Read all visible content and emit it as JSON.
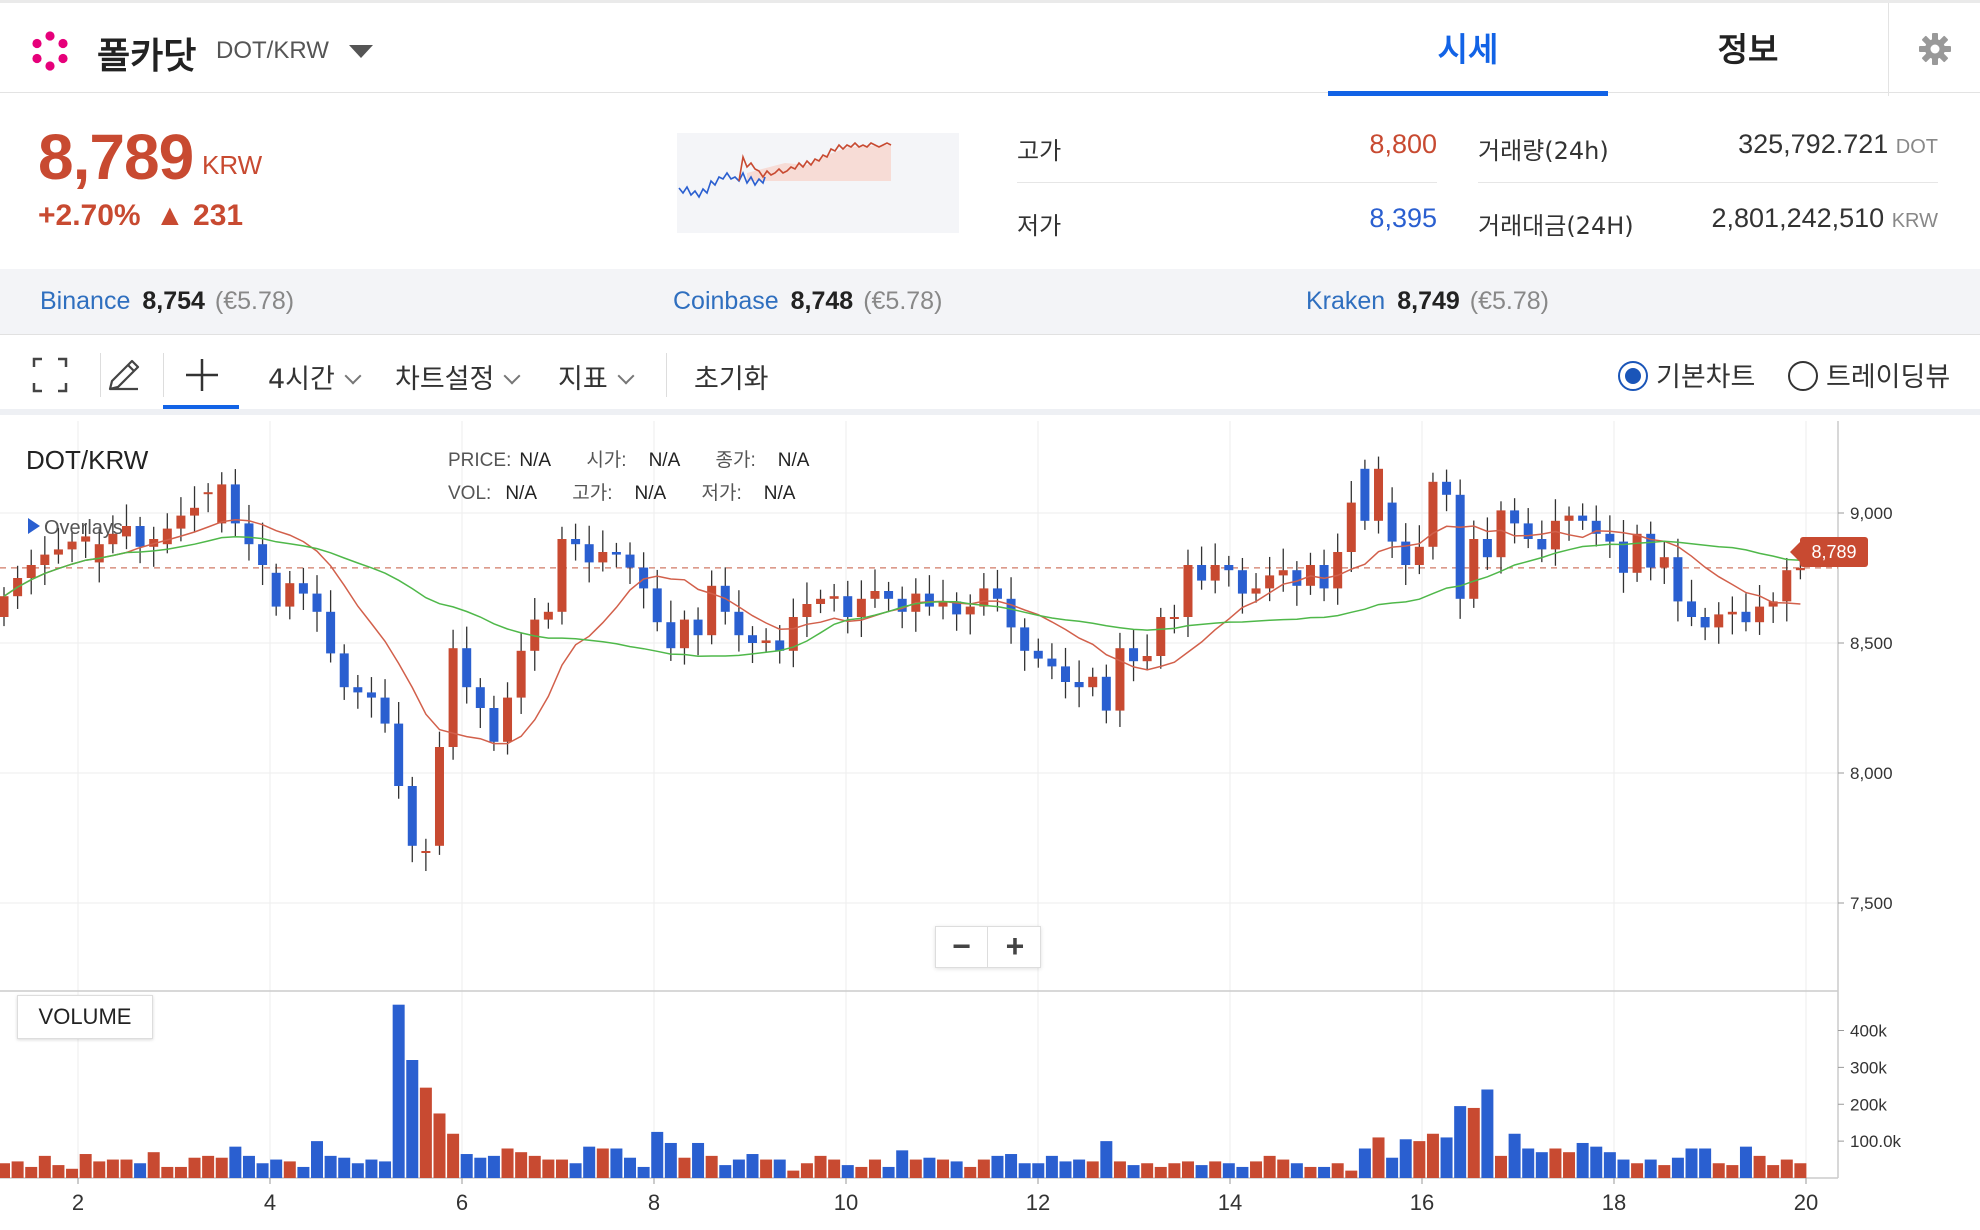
{
  "header": {
    "coin_name": "폴카닷",
    "pair": "DOT/KRW",
    "tabs": [
      {
        "label": "시세"
      },
      {
        "label": "정보"
      }
    ]
  },
  "summary": {
    "price": "8,789",
    "unit": "KRW",
    "change_pct": "+2.70%",
    "change_abs": "▲ 231",
    "high_label": "고가",
    "high": "8,800",
    "low_label": "저가",
    "low": "8,395",
    "volume_label": "거래량(24h)",
    "volume": "325,792.721",
    "volume_unit": "DOT",
    "amount_label": "거래대금(24H)",
    "amount": "2,801,242,510",
    "amount_unit": "KRW"
  },
  "exchanges": [
    {
      "name": "Binance",
      "price": "8,754",
      "eur": "(€5.78)"
    },
    {
      "name": "Coinbase",
      "price": "8,748",
      "eur": "(€5.78)"
    },
    {
      "name": "Kraken",
      "price": "8,749",
      "eur": "(€5.78)"
    }
  ],
  "toolbar": {
    "interval": "4시간",
    "chart_settings": "차트설정",
    "indicators": "지표",
    "reset": "초기화",
    "radio_basic": "기본차트",
    "radio_tv": "트레이딩뷰"
  },
  "chart": {
    "pair_label": "DOT/KRW",
    "overlays": "Overlays",
    "legend": {
      "price_k": "PRICE:",
      "price_v": "N/A",
      "open_k": "시가:",
      "open_v": "N/A",
      "close_k": "종가:",
      "close_v": "N/A",
      "vol_k": "VOL:",
      "vol_v": "N/A",
      "high_k": "고가:",
      "high_v": "N/A",
      "low_k": "저가:",
      "low_v": "N/A"
    },
    "current_price_tag": "8,789",
    "volume_label": "VOLUME",
    "zoom_minus": "−",
    "zoom_plus": "+"
  },
  "colors": {
    "up": "#c84a31",
    "down": "#2a5fd0",
    "accent": "#1263e6"
  },
  "chart_data": {
    "type": "candlestick",
    "ylim": [
      7200,
      9300
    ],
    "y_ticks": [
      "9,000",
      "8,500",
      "8,000",
      "7,500"
    ],
    "x_ticks": [
      "2",
      "4",
      "6",
      "8",
      "10",
      "12",
      "14",
      "16",
      "18",
      "20"
    ],
    "vol_ticks": [
      "400k",
      "300k",
      "200k",
      "100.0k"
    ],
    "close": [
      8680,
      8750,
      8800,
      8840,
      8860,
      8890,
      8910,
      8880,
      8920,
      8950,
      8870,
      8900,
      8940,
      8990,
      9020,
      9080,
      9110,
      8960,
      8880,
      8800,
      8640,
      8730,
      8690,
      8620,
      8460,
      8330,
      8310,
      8290,
      8190,
      7950,
      7720,
      7700,
      8100,
      8480,
      8330,
      8250,
      8120,
      8290,
      8470,
      8590,
      8620,
      8900,
      8880,
      8810,
      8850,
      8840,
      8790,
      8710,
      8580,
      8480,
      8590,
      8530,
      8720,
      8620,
      8530,
      8500,
      8510,
      8470,
      8600,
      8650,
      8670,
      8680,
      8600,
      8670,
      8700,
      8670,
      8620,
      8690,
      8640,
      8660,
      8610,
      8640,
      8710,
      8670,
      8560,
      8470,
      8440,
      8410,
      8350,
      8330,
      8370,
      8240,
      8480,
      8430,
      8450,
      8600,
      8600,
      8800,
      8740,
      8800,
      8780,
      8690,
      8710,
      8760,
      8780,
      8720,
      8800,
      8710,
      8850,
      9040,
      8970,
      9170,
      8890,
      8800,
      8870,
      9120,
      9070,
      8670,
      8900,
      8830,
      9010,
      8960,
      8900,
      8860,
      8970,
      8990,
      8970,
      8920,
      8890,
      8770,
      8920,
      8790,
      8830,
      8660,
      8600,
      8560,
      8610,
      8620,
      8580,
      8640,
      8660,
      8780,
      8789
    ],
    "open": [
      8600,
      8680,
      8750,
      8800,
      8840,
      8860,
      8890,
      8810,
      8880,
      8910,
      8950,
      8870,
      8880,
      8940,
      8990,
      9080,
      8960,
      9110,
      8960,
      8880,
      8770,
      8640,
      8730,
      8690,
      8620,
      8460,
      8330,
      8310,
      8290,
      8190,
      7950,
      7700,
      7720,
      8100,
      8480,
      8330,
      8250,
      8120,
      8290,
      8470,
      8590,
      8620,
      8900,
      8880,
      8810,
      8850,
      8840,
      8790,
      8710,
      8580,
      8480,
      8590,
      8530,
      8720,
      8620,
      8530,
      8500,
      8510,
      8470,
      8600,
      8650,
      8670,
      8680,
      8600,
      8670,
      8700,
      8670,
      8620,
      8690,
      8640,
      8660,
      8610,
      8640,
      8710,
      8670,
      8560,
      8470,
      8440,
      8410,
      8350,
      8330,
      8370,
      8240,
      8480,
      8430,
      8450,
      8600,
      8600,
      8800,
      8740,
      8800,
      8780,
      8690,
      8710,
      8760,
      8780,
      8720,
      8800,
      8710,
      8850,
      9170,
      8970,
      9040,
      8890,
      8800,
      8870,
      9120,
      9070,
      8670,
      8900,
      8830,
      9010,
      8960,
      8900,
      8860,
      8970,
      8990,
      8970,
      8920,
      8890,
      8770,
      8920,
      8790,
      8830,
      8660,
      8600,
      8560,
      8610,
      8620,
      8580,
      8640,
      8660,
      8780
    ],
    "volume": [
      40,
      45,
      30,
      60,
      35,
      25,
      65,
      45,
      50,
      50,
      40,
      70,
      30,
      30,
      55,
      60,
      55,
      85,
      60,
      40,
      50,
      45,
      30,
      100,
      60,
      55,
      40,
      50,
      45,
      470,
      320,
      245,
      175,
      120,
      65,
      55,
      60,
      80,
      70,
      60,
      50,
      50,
      40,
      85,
      80,
      80,
      55,
      30,
      125,
      95,
      55,
      95,
      60,
      35,
      50,
      65,
      50,
      50,
      20,
      40,
      60,
      50,
      35,
      30,
      50,
      30,
      75,
      50,
      55,
      50,
      45,
      30,
      50,
      60,
      65,
      40,
      40,
      60,
      45,
      50,
      45,
      100,
      45,
      35,
      40,
      30,
      40,
      45,
      35,
      45,
      40,
      30,
      45,
      60,
      50,
      40,
      30,
      30,
      40,
      20,
      80,
      110,
      55,
      105,
      100,
      120,
      110,
      195,
      190,
      240,
      60,
      120,
      80,
      70,
      80,
      70,
      95,
      85,
      70,
      50,
      40,
      50,
      35,
      55,
      80,
      80,
      40,
      35,
      85,
      60,
      35,
      50,
      40
    ]
  }
}
